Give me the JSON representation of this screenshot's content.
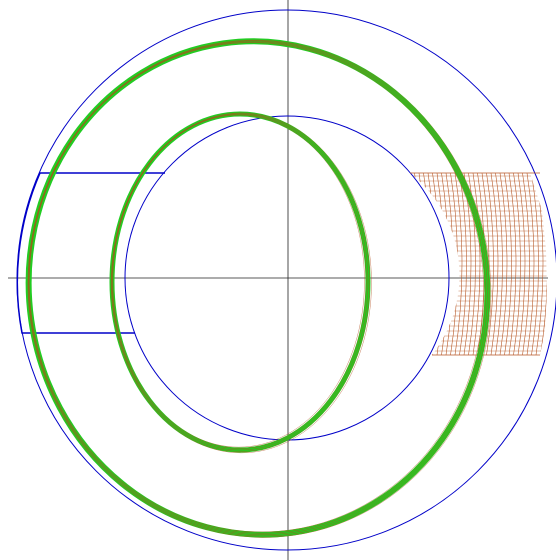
{
  "colors": {
    "background": "#ffffff",
    "axis": "#202020",
    "outline": "#0000c8",
    "coil_track": "#22cc22",
    "coil_line": "#b04a1a",
    "hatch": "#b85a2a"
  },
  "view": {
    "outer_circle": "outline-circle",
    "inner_circle": "inner-bore-circle",
    "port_block": "rectangular-port",
    "hatched_sector": "hatched-winding-section"
  }
}
